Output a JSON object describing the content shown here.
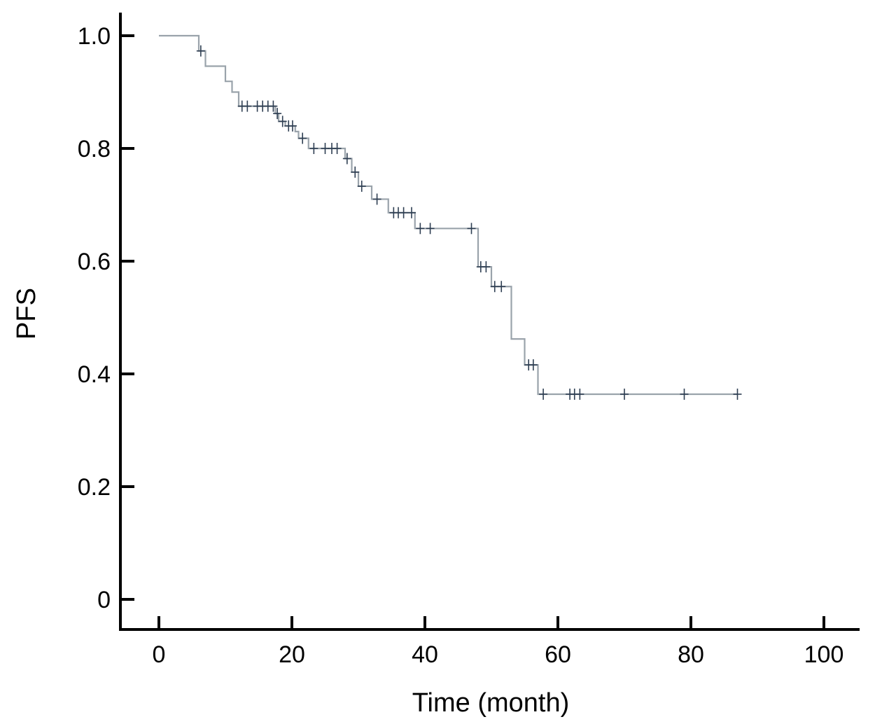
{
  "chart_data": {
    "type": "line",
    "subtype": "kaplan-meier",
    "xlabel": "Time (month)",
    "ylabel": "PFS",
    "xlim": [
      -3,
      105
    ],
    "ylim": [
      -0.054,
      1.04
    ],
    "x_ticks": [
      0,
      20,
      40,
      60,
      80,
      100
    ],
    "x_tick_labels": [
      "0",
      "20",
      "40",
      "60",
      "80",
      "100"
    ],
    "y_ticks": [
      0,
      0.2,
      0.4,
      0.6,
      0.8,
      1.0
    ],
    "y_tick_labels": [
      "0",
      "0.2",
      "0.4",
      "0.6",
      "0.8",
      "1.0"
    ],
    "grid": false,
    "series": [
      {
        "color": "#9aa3ab",
        "censor_color": "#2e3e52",
        "steps": [
          {
            "x": 0,
            "y": 1.0
          },
          {
            "x": 6,
            "y": 0.973
          },
          {
            "x": 7,
            "y": 0.946
          },
          {
            "x": 10,
            "y": 0.919
          },
          {
            "x": 11,
            "y": 0.9
          },
          {
            "x": 12,
            "y": 0.875
          },
          {
            "x": 17.5,
            "y": 0.862
          },
          {
            "x": 18,
            "y": 0.848
          },
          {
            "x": 19,
            "y": 0.84
          },
          {
            "x": 20.5,
            "y": 0.83
          },
          {
            "x": 21,
            "y": 0.818
          },
          {
            "x": 22.5,
            "y": 0.8
          },
          {
            "x": 28,
            "y": 0.782
          },
          {
            "x": 29,
            "y": 0.758
          },
          {
            "x": 30,
            "y": 0.733
          },
          {
            "x": 32,
            "y": 0.71
          },
          {
            "x": 34.5,
            "y": 0.686
          },
          {
            "x": 38.5,
            "y": 0.658
          },
          {
            "x": 48,
            "y": 0.59
          },
          {
            "x": 50,
            "y": 0.555
          },
          {
            "x": 53,
            "y": 0.462
          },
          {
            "x": 55,
            "y": 0.416
          },
          {
            "x": 57,
            "y": 0.364
          }
        ],
        "end_x": 87,
        "censored": [
          {
            "x": 6.3,
            "y": 0.973
          },
          {
            "x": 12.5,
            "y": 0.875
          },
          {
            "x": 13.3,
            "y": 0.875
          },
          {
            "x": 14.8,
            "y": 0.875
          },
          {
            "x": 15.6,
            "y": 0.875
          },
          {
            "x": 16.4,
            "y": 0.875
          },
          {
            "x": 17.2,
            "y": 0.875
          },
          {
            "x": 17.8,
            "y": 0.862
          },
          {
            "x": 18.6,
            "y": 0.848
          },
          {
            "x": 19.5,
            "y": 0.84
          },
          {
            "x": 20.1,
            "y": 0.84
          },
          {
            "x": 21.6,
            "y": 0.818
          },
          {
            "x": 23.3,
            "y": 0.8
          },
          {
            "x": 25.0,
            "y": 0.8
          },
          {
            "x": 26.0,
            "y": 0.8
          },
          {
            "x": 26.8,
            "y": 0.8
          },
          {
            "x": 28.3,
            "y": 0.782
          },
          {
            "x": 29.5,
            "y": 0.758
          },
          {
            "x": 30.5,
            "y": 0.733
          },
          {
            "x": 32.8,
            "y": 0.71
          },
          {
            "x": 35.3,
            "y": 0.686
          },
          {
            "x": 36.0,
            "y": 0.686
          },
          {
            "x": 36.8,
            "y": 0.686
          },
          {
            "x": 38.0,
            "y": 0.686
          },
          {
            "x": 39.3,
            "y": 0.658
          },
          {
            "x": 40.8,
            "y": 0.658
          },
          {
            "x": 47.0,
            "y": 0.658
          },
          {
            "x": 48.4,
            "y": 0.59
          },
          {
            "x": 49.2,
            "y": 0.59
          },
          {
            "x": 50.5,
            "y": 0.555
          },
          {
            "x": 51.5,
            "y": 0.555
          },
          {
            "x": 55.6,
            "y": 0.416
          },
          {
            "x": 56.3,
            "y": 0.416
          },
          {
            "x": 57.8,
            "y": 0.364
          },
          {
            "x": 61.8,
            "y": 0.364
          },
          {
            "x": 62.5,
            "y": 0.364
          },
          {
            "x": 63.3,
            "y": 0.364
          },
          {
            "x": 70.0,
            "y": 0.364
          },
          {
            "x": 79.0,
            "y": 0.364
          },
          {
            "x": 87.0,
            "y": 0.364
          }
        ]
      }
    ]
  }
}
